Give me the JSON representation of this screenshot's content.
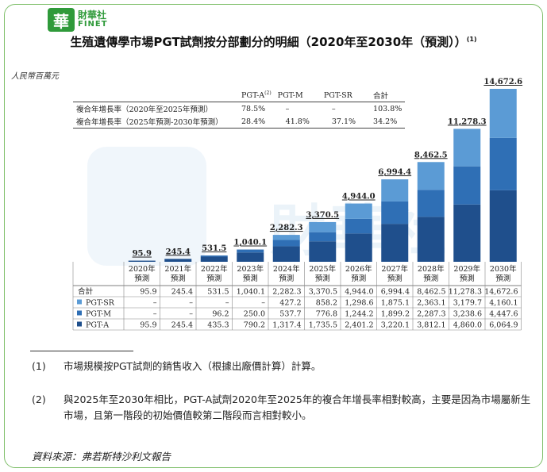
{
  "header": {
    "logo_cn": "財華社",
    "logo_en": "FINET",
    "logo_mark": "華"
  },
  "title": "生殖遺傳學市場PGT試劑按分部劃分的明細（2020年至2030年（預測））",
  "title_sup": "(1)",
  "unit_label": "人民幣百萬元",
  "cagr_table": {
    "headers": [
      "PGT-A",
      "PGT-M",
      "PGT-SR",
      "合計"
    ],
    "pgt_a_sup": "(2)",
    "rows": [
      {
        "label": "複合年增長率（2020年至2025年預測）",
        "values": [
          "78.5%",
          "–",
          "–",
          "103.8%"
        ]
      },
      {
        "label": "複合年增長率（2025年預測-2030年預測）",
        "values": [
          "28.4%",
          "41.8%",
          "37.1%",
          "34.2%"
        ]
      }
    ]
  },
  "chart_data": {
    "type": "bar",
    "stacked": true,
    "categories": [
      "2020年\n預測",
      "2021年\n預測",
      "2022年\n預測",
      "2023年\n預測",
      "2024年\n預測",
      "2025年\n預測",
      "2026年\n預測",
      "2027年\n預測",
      "2028年\n預測",
      "2029年\n預測",
      "2030年\n預測"
    ],
    "category_lines": [
      [
        "2020年",
        "預測"
      ],
      [
        "2021年",
        "預測"
      ],
      [
        "2022年",
        "預測"
      ],
      [
        "2023年",
        "預測"
      ],
      [
        "2024年",
        "預測"
      ],
      [
        "2025年",
        "預測"
      ],
      [
        "2026年",
        "預測"
      ],
      [
        "2027年",
        "預測"
      ],
      [
        "2028年",
        "預測"
      ],
      [
        "2029年",
        "預測"
      ],
      [
        "2030年",
        "預測"
      ]
    ],
    "series": [
      {
        "name": "PGT-A",
        "color": "#1f4f8c",
        "values": [
          95.9,
          245.4,
          435.3,
          790.2,
          1317.4,
          1735.5,
          2401.2,
          3220.1,
          3812.1,
          4860.0,
          6064.9
        ],
        "labels": [
          "95.9",
          "245.4",
          "435.3",
          "790.2",
          "1,317.4",
          "1,735.5",
          "2,401.2",
          "3,220.1",
          "3,812.1",
          "4,860.0",
          "6,064.9"
        ]
      },
      {
        "name": "PGT-M",
        "color": "#2f6fb5",
        "values": [
          0,
          0,
          96.2,
          250.0,
          537.7,
          776.8,
          1244.2,
          1899.2,
          2287.3,
          3238.6,
          4447.6
        ],
        "labels": [
          "–",
          "–",
          "96.2",
          "250.0",
          "537.7",
          "776.8",
          "1,244.2",
          "1,899.2",
          "2,287.3",
          "3,238.6",
          "4,447.6"
        ]
      },
      {
        "name": "PGT-SR",
        "color": "#5b9bd5",
        "values": [
          0,
          0,
          0,
          0,
          427.2,
          858.2,
          1298.6,
          1875.1,
          2363.1,
          3179.7,
          4160.1
        ],
        "labels": [
          "–",
          "–",
          "–",
          "–",
          "427.2",
          "858.2",
          "1,298.6",
          "1,875.1",
          "2,363.1",
          "3,179.7",
          "4,160.1"
        ]
      }
    ],
    "totals": [
      95.9,
      245.4,
      531.5,
      1040.1,
      2282.3,
      3370.5,
      4944.0,
      6994.4,
      8462.5,
      11278.3,
      14672.6
    ],
    "total_labels": [
      "95.9",
      "245.4",
      "531.5",
      "1,040.1",
      "2,282.3",
      "3,370.5",
      "4,944.0",
      "6,994.4",
      "8,462.5",
      "11,278.3",
      "14,672.6"
    ],
    "total_row_label": "合計",
    "table_order": [
      "PGT-SR",
      "PGT-M",
      "PGT-A"
    ],
    "ylim": [
      0,
      14672.6
    ]
  },
  "notes": [
    {
      "num": "(1)",
      "text": "市場規模按PGT試劑的銷售收入（根據出廠價計算）計算。"
    },
    {
      "num": "(2)",
      "text": "與2025年至2030年相比，PGT-A試劑2020年至2025年的複合年增長率相對較高，主要是因為市場屬新生市場，且第一階段的初始價值較第二階段而言相對較小。"
    }
  ],
  "source": "資料來源：弗若斯特沙利文報告",
  "watermark": "財華社"
}
